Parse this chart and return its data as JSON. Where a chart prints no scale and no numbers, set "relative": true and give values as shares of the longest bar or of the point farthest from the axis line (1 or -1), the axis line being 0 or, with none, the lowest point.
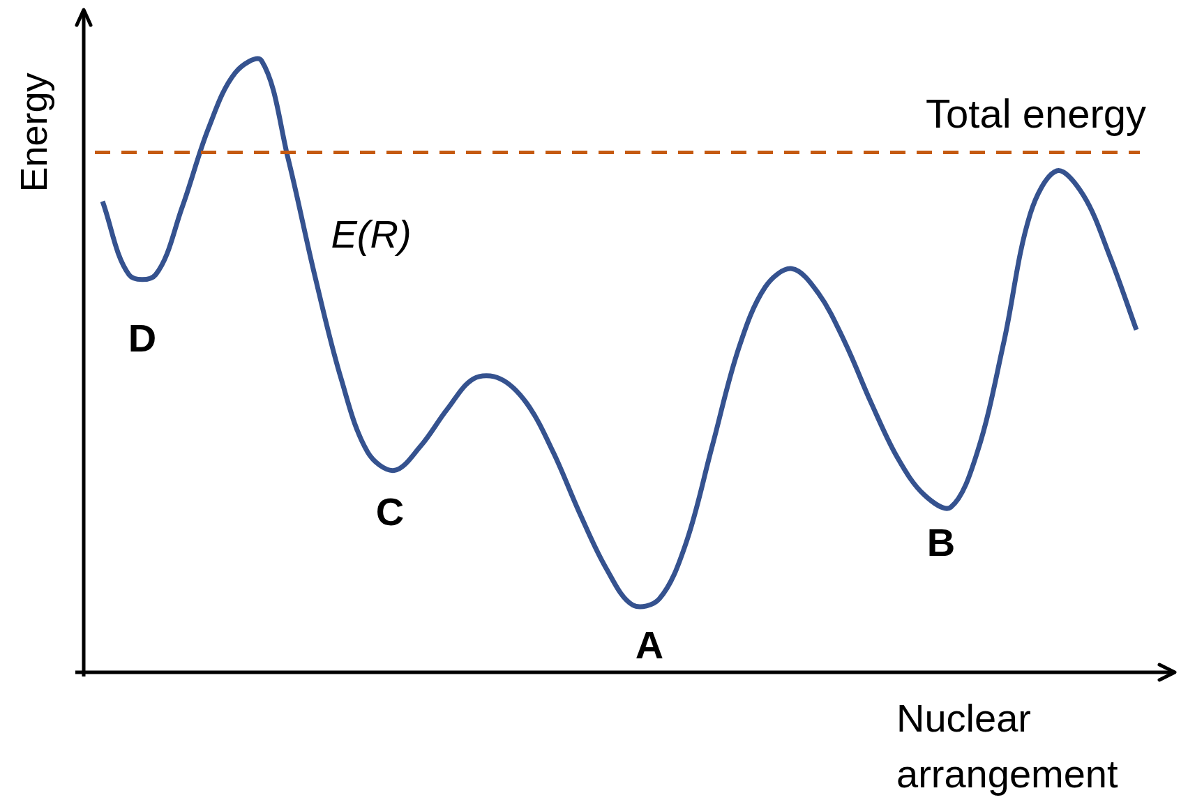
{
  "chart_data": {
    "type": "line",
    "relative": true,
    "xlabel": "Nuclear arrangement",
    "ylabel": "Energy",
    "categories": [
      null,
      null,
      null,
      null,
      null,
      null,
      null,
      null,
      null,
      null,
      null,
      null,
      null,
      null,
      null,
      null,
      null,
      null,
      null,
      null,
      null,
      null,
      null,
      null,
      null,
      null,
      null,
      null,
      null,
      null,
      null,
      null,
      null,
      null,
      null,
      null,
      null,
      null,
      null,
      null
    ],
    "series": [
      {
        "color": "#35528f",
        "values": [
          0.77,
          0.65,
          0.65,
          0.76,
          0.89,
          0.98,
          1,
          0.84,
          0.65,
          0.48,
          0.36,
          0.33,
          0.37,
          0.43,
          0.48,
          0.48,
          0.44,
          0.36,
          0.26,
          0.17,
          0.11,
          0.12,
          0.21,
          0.37,
          0.53,
          0.63,
          0.66,
          0.62,
          0.54,
          0.44,
          0.35,
          0.29,
          0.27,
          0.36,
          0.54,
          0.75,
          0.82,
          0.78,
          0.68,
          0.56
        ]
      }
    ],
    "ref_lines": [
      {
        "axis": "y",
        "value": 0.85,
        "label": "Total energy",
        "color": "#c55a11",
        "line_style": "dashed"
      }
    ],
    "annotations": [
      "E(R)",
      "D",
      "C",
      "A",
      "B"
    ],
    "legend": false,
    "marker": "none",
    "line_style": "solid"
  }
}
